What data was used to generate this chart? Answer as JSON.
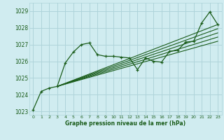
{
  "xlabel": "Graphe pression niveau de la mer (hPa)",
  "bg_color": "#d0ecf0",
  "grid_color": "#aed4da",
  "line_color": "#1a5c1a",
  "text_color": "#1a5c1a",
  "ylim": [
    1022.8,
    1029.5
  ],
  "xlim": [
    -0.5,
    23.5
  ],
  "yticks": [
    1023,
    1024,
    1025,
    1026,
    1027,
    1028,
    1029
  ],
  "xticks": [
    0,
    1,
    2,
    3,
    4,
    5,
    6,
    7,
    8,
    9,
    10,
    11,
    12,
    13,
    14,
    15,
    16,
    17,
    18,
    19,
    20,
    21,
    22,
    23
  ],
  "main_data": [
    [
      0,
      1023.1
    ],
    [
      1,
      1024.2
    ],
    [
      2,
      1024.4
    ],
    [
      3,
      1024.5
    ],
    [
      4,
      1025.9
    ],
    [
      5,
      1026.55
    ],
    [
      6,
      1027.0
    ],
    [
      7,
      1027.1
    ],
    [
      8,
      1026.4
    ],
    [
      9,
      1026.3
    ],
    [
      10,
      1026.3
    ],
    [
      11,
      1026.25
    ],
    [
      12,
      1026.2
    ],
    [
      13,
      1025.5
    ],
    [
      14,
      1026.2
    ],
    [
      15,
      1026.0
    ],
    [
      16,
      1025.95
    ],
    [
      17,
      1026.6
    ],
    [
      18,
      1026.65
    ],
    [
      19,
      1027.15
    ],
    [
      20,
      1027.2
    ],
    [
      21,
      1028.3
    ],
    [
      22,
      1028.95
    ],
    [
      23,
      1028.2
    ]
  ],
  "trend_lines": [
    [
      [
        3,
        1024.5
      ],
      [
        23,
        1028.2
      ]
    ],
    [
      [
        3,
        1024.5
      ],
      [
        23,
        1027.95
      ]
    ],
    [
      [
        3,
        1024.5
      ],
      [
        23,
        1027.7
      ]
    ],
    [
      [
        3,
        1024.5
      ],
      [
        23,
        1027.45
      ]
    ],
    [
      [
        3,
        1024.5
      ],
      [
        23,
        1027.2
      ]
    ]
  ]
}
